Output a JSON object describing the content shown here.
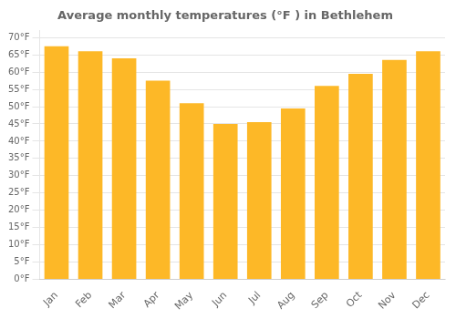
{
  "chart_data": {
    "type": "bar",
    "title": "Average monthly temperatures (°F ) in Bethlehem",
    "categories": [
      "Jan",
      "Feb",
      "Mar",
      "Apr",
      "May",
      "Jun",
      "Jul",
      "Aug",
      "Sep",
      "Oct",
      "Nov",
      "Dec"
    ],
    "values": [
      67.5,
      66.0,
      64.0,
      57.5,
      51.0,
      45.0,
      45.5,
      49.5,
      56.0,
      59.5,
      63.5,
      66.0
    ],
    "color": "#FDB827",
    "ylim": [
      0,
      72
    ],
    "yticks": [
      {
        "value": 0,
        "label": "0°F"
      },
      {
        "value": 5,
        "label": "5°F"
      },
      {
        "value": 10,
        "label": "10°F"
      },
      {
        "value": 15,
        "label": "15°F"
      },
      {
        "value": 20,
        "label": "20°F"
      },
      {
        "value": 25,
        "label": "25°F"
      },
      {
        "value": 30,
        "label": "30°F"
      },
      {
        "value": 35,
        "label": "35°F"
      },
      {
        "value": 40,
        "label": "40°F"
      },
      {
        "value": 45,
        "label": "45°F"
      },
      {
        "value": 50,
        "label": "50°F"
      },
      {
        "value": 55,
        "label": "55°F"
      },
      {
        "value": 60,
        "label": "60°F"
      },
      {
        "value": 65,
        "label": "65°F"
      },
      {
        "value": 70,
        "label": "70°F"
      }
    ],
    "grid": true
  }
}
